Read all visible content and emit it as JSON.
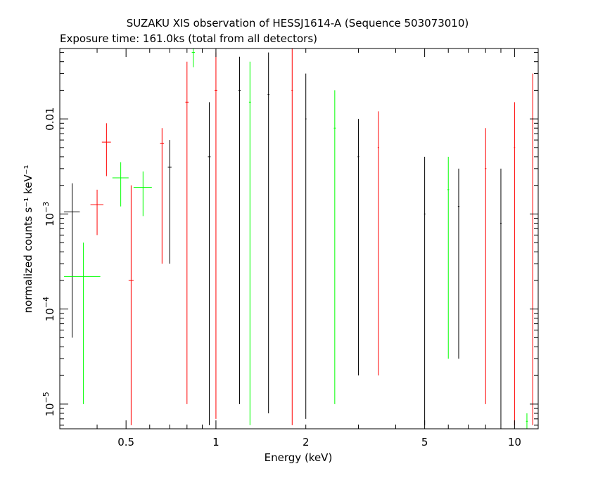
{
  "chart_data": {
    "type": "scatter",
    "title": "SUZAKU XIS observation of HESSJ1614-A (Sequence 503073010)",
    "subtitle": "Exposure time: 161.0ks (total from all detectors)",
    "xlabel": "Energy (keV)",
    "ylabel": "normalized counts s⁻¹ keV⁻¹",
    "xscale": "log",
    "yscale": "log",
    "xlim": [
      0.3,
      12.0
    ],
    "ylim": [
      5.5e-06,
      0.055
    ],
    "x_ticks": [
      {
        "value": 0.5,
        "label": "0.5"
      },
      {
        "value": 1,
        "label": "1"
      },
      {
        "value": 2,
        "label": "2"
      },
      {
        "value": 5,
        "label": "5"
      },
      {
        "value": 10,
        "label": "10"
      }
    ],
    "y_ticks": [
      {
        "value": 1e-05,
        "label": "10",
        "exp": "−5"
      },
      {
        "value": 0.0001,
        "label": "10",
        "exp": "−4"
      },
      {
        "value": 0.001,
        "label": "10",
        "exp": "−3"
      },
      {
        "value": 0.01,
        "label": "0.01",
        "exp": ""
      }
    ],
    "grid": false,
    "series": [
      {
        "color": "#000000",
        "points": [
          {
            "x": 0.33,
            "xerr": 0.02,
            "y": 0.00105,
            "ylo": 5e-05,
            "yhi": 0.0021
          },
          {
            "x": 0.7,
            "xerr": 0.01,
            "y": 0.0031,
            "ylo": 0.0003,
            "yhi": 0.006
          },
          {
            "x": 0.95,
            "xerr": 0.01,
            "y": 0.004,
            "ylo": 6e-06,
            "yhi": 0.015
          },
          {
            "x": 1.2,
            "xerr": 0.01,
            "y": 0.02,
            "ylo": 1e-05,
            "yhi": 0.045
          },
          {
            "x": 1.5,
            "xerr": 0.01,
            "y": 0.018,
            "ylo": 8e-06,
            "yhi": 0.05
          },
          {
            "x": 2.0,
            "xerr": 0.01,
            "y": 0.01,
            "ylo": 7e-06,
            "yhi": 0.03
          },
          {
            "x": 3.0,
            "xerr": 0.02,
            "y": 0.004,
            "ylo": 2e-05,
            "yhi": 0.01
          },
          {
            "x": 5.0,
            "xerr": 0.03,
            "y": 0.001,
            "ylo": 6e-06,
            "yhi": 0.004
          },
          {
            "x": 6.5,
            "xerr": 0.04,
            "y": 0.0012,
            "ylo": 3e-05,
            "yhi": 0.003
          },
          {
            "x": 9.0,
            "xerr": 0.05,
            "y": 0.0008,
            "ylo": 6e-06,
            "yhi": 0.003
          }
        ]
      },
      {
        "color": "#ff0000",
        "points": [
          {
            "x": 0.4,
            "xerr": 0.02,
            "y": 0.00125,
            "ylo": 0.0006,
            "yhi": 0.0018
          },
          {
            "x": 0.43,
            "xerr": 0.015,
            "y": 0.0057,
            "ylo": 0.0025,
            "yhi": 0.009
          },
          {
            "x": 0.52,
            "xerr": 0.01,
            "y": 0.0002,
            "ylo": 6e-06,
            "yhi": 0.002
          },
          {
            "x": 0.66,
            "xerr": 0.01,
            "y": 0.0055,
            "ylo": 0.0003,
            "yhi": 0.008
          },
          {
            "x": 0.8,
            "xerr": 0.01,
            "y": 0.015,
            "ylo": 1e-05,
            "yhi": 0.04
          },
          {
            "x": 1.0,
            "xerr": 0.01,
            "y": 0.02,
            "ylo": 7e-06,
            "yhi": 0.05
          },
          {
            "x": 1.8,
            "xerr": 0.01,
            "y": 0.02,
            "ylo": 6e-06,
            "yhi": 0.055
          },
          {
            "x": 3.5,
            "xerr": 0.02,
            "y": 0.005,
            "ylo": 2e-05,
            "yhi": 0.012
          },
          {
            "x": 8.0,
            "xerr": 0.05,
            "y": 0.003,
            "ylo": 1e-05,
            "yhi": 0.008
          },
          {
            "x": 10.0,
            "xerr": 0.05,
            "y": 0.005,
            "ylo": 6e-06,
            "yhi": 0.015
          },
          {
            "x": 11.5,
            "xerr": 0.06,
            "y": 0.01,
            "ylo": 6e-06,
            "yhi": 0.03
          }
        ]
      },
      {
        "color": "#00ff00",
        "points": [
          {
            "x": 0.36,
            "xerr": 0.05,
            "y": 0.00022,
            "ylo": 1e-05,
            "yhi": 0.0005
          },
          {
            "x": 0.48,
            "xerr": 0.03,
            "y": 0.0024,
            "ylo": 0.0012,
            "yhi": 0.0035
          },
          {
            "x": 0.57,
            "xerr": 0.04,
            "y": 0.0019,
            "ylo": 0.00095,
            "yhi": 0.0028
          },
          {
            "x": 0.84,
            "xerr": 0.01,
            "y": 0.05,
            "ylo": 0.035,
            "yhi": 0.055
          },
          {
            "x": 1.3,
            "xerr": 0.01,
            "y": 0.015,
            "ylo": 6e-06,
            "yhi": 0.04
          },
          {
            "x": 2.5,
            "xerr": 0.02,
            "y": 0.008,
            "ylo": 1e-05,
            "yhi": 0.02
          },
          {
            "x": 6.0,
            "xerr": 0.04,
            "y": 0.0018,
            "ylo": 3e-05,
            "yhi": 0.004
          },
          {
            "x": 11.0,
            "xerr": 0.08,
            "y": 6.6e-06,
            "ylo": 5.5e-06,
            "yhi": 8e-06
          }
        ]
      }
    ]
  }
}
